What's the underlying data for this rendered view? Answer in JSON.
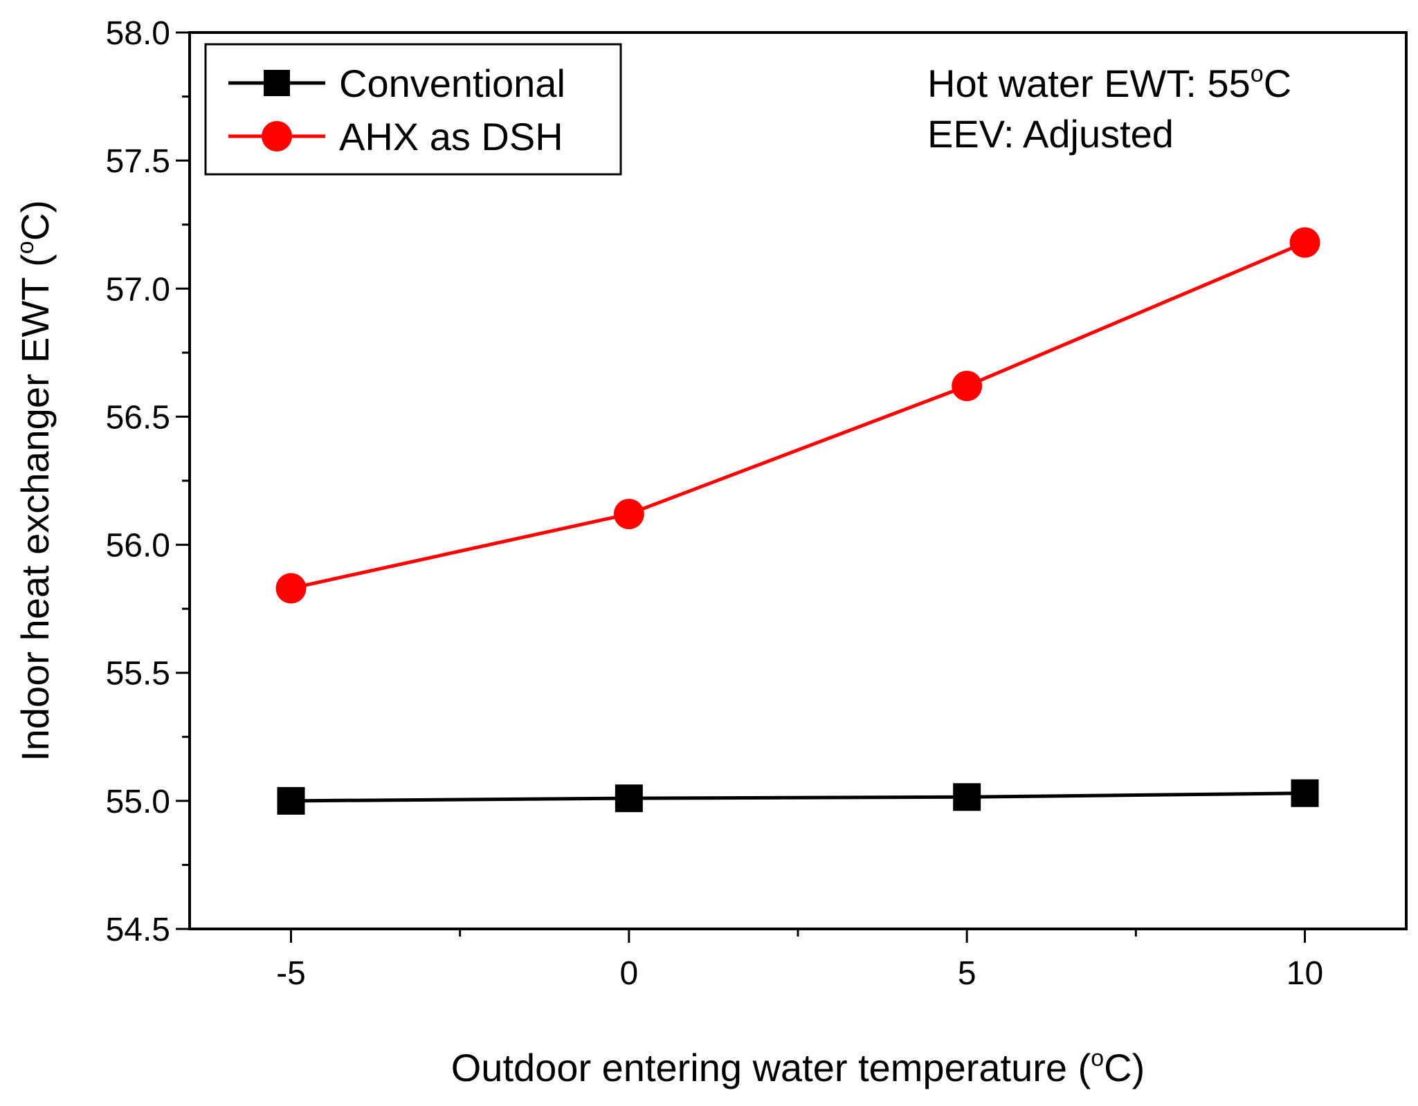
{
  "chart_data": {
    "type": "line",
    "xlabel": "Outdoor entering water temperature (",
    "xlabel_sup": "o",
    "xlabel_end": "C)",
    "ylabel": "Indoor heat exchanger EWT (",
    "ylabel_sup": "o",
    "ylabel_end": "C)",
    "xlim": [
      -6.5,
      11.5
    ],
    "ylim": [
      54.5,
      58.0
    ],
    "x_ticks": [
      -5,
      0,
      5,
      10
    ],
    "x_tick_labels": [
      "-5",
      "0",
      "5",
      "10"
    ],
    "x_minor_ticks": [
      -2.5,
      2.5,
      7.5
    ],
    "y_ticks": [
      54.5,
      55.0,
      55.5,
      56.0,
      56.5,
      57.0,
      57.5,
      58.0
    ],
    "y_tick_labels": [
      "54.5",
      "55.0",
      "55.5",
      "56.0",
      "56.5",
      "57.0",
      "57.5",
      "58.0"
    ],
    "y_minor_ticks": [
      54.75,
      55.25,
      55.75,
      56.25,
      56.75,
      57.25,
      57.75
    ],
    "x": [
      -5,
      0,
      5,
      10
    ],
    "series": [
      {
        "name": "Conventional",
        "values": [
          55.0,
          55.01,
          55.015,
          55.03
        ],
        "color": "#000000",
        "marker": "square"
      },
      {
        "name": "AHX as DSH",
        "values": [
          55.83,
          56.12,
          56.62,
          57.18
        ],
        "color": "#ff0000",
        "marker": "circle"
      }
    ],
    "legend_position": "top-left",
    "grid": false,
    "annotations": {
      "line1": "Hot water EWT: 55",
      "line1_sup": "o",
      "line1_end": "C",
      "line2": "EEV: Adjusted"
    }
  }
}
